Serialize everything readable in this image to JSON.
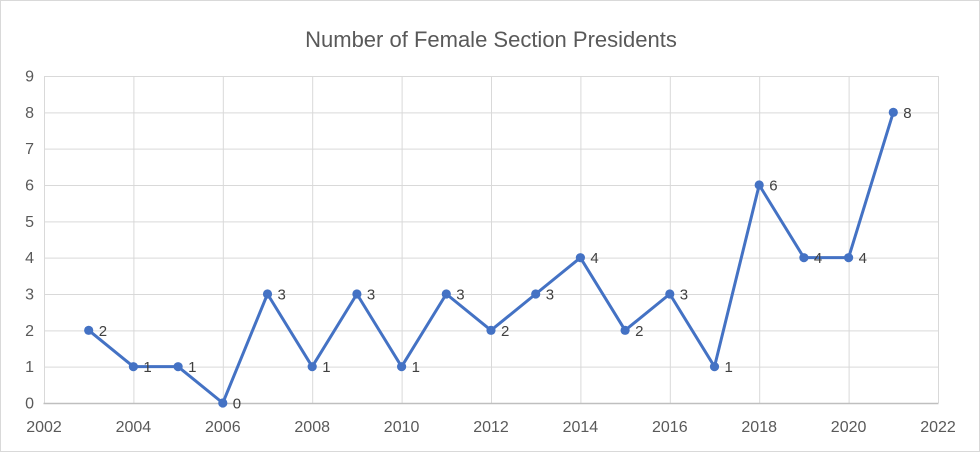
{
  "frame": {
    "background": "#ffffff",
    "border_color": "#d9d9d9"
  },
  "chart_data": {
    "type": "line",
    "title": "Number of Female Section Presidents",
    "x": [
      2003,
      2004,
      2005,
      2006,
      2007,
      2008,
      2009,
      2010,
      2011,
      2012,
      2013,
      2014,
      2015,
      2016,
      2017,
      2018,
      2019,
      2020,
      2021
    ],
    "values": [
      2,
      1,
      1,
      0,
      3,
      1,
      3,
      1,
      3,
      2,
      3,
      4,
      2,
      3,
      1,
      6,
      4,
      4,
      8
    ],
    "data_labels": true,
    "xlim": [
      2002,
      2022
    ],
    "ylim": [
      0,
      9
    ],
    "x_ticks": [
      2002,
      2004,
      2006,
      2008,
      2010,
      2012,
      2014,
      2016,
      2018,
      2020,
      2022
    ],
    "y_ticks": [
      0,
      1,
      2,
      3,
      4,
      5,
      6,
      7,
      8,
      9
    ],
    "grid": true,
    "legend": "none",
    "line_color": "#4472C4",
    "marker": "circle",
    "gridline_color": "#d9d9d9",
    "axis_line_color": "#bfbfbf",
    "tick_label_color": "#595959",
    "title_color": "#595959",
    "data_label_color": "#404040"
  }
}
